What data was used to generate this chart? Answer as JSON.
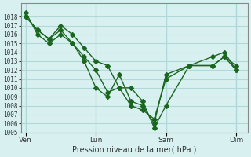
{
  "title": "",
  "xlabel": "Pression niveau de la mer( hPa )",
  "ylabel": "",
  "bg_color": "#d8f0f0",
  "grid_color": "#b0d8d8",
  "line_color": "#1a6620",
  "ylim": [
    1005,
    1019
  ],
  "yticks": [
    1005,
    1006,
    1007,
    1008,
    1009,
    1010,
    1011,
    1012,
    1013,
    1014,
    1015,
    1016,
    1017,
    1018
  ],
  "xtick_labels": [
    "Ven",
    "Lun",
    "Sam",
    "Dim"
  ],
  "xtick_positions": [
    0,
    3,
    6,
    9
  ],
  "series": [
    [
      1018,
      1016.5,
      1015.5,
      1016.5,
      1015,
      1013,
      1010,
      1009,
      1011.5,
      1008.5,
      1008,
      1006,
      1011.5,
      1012.5,
      1012.5,
      1013.5,
      1012
    ],
    [
      1018,
      1016.5,
      1015.5,
      1017,
      1016,
      1014.5,
      1013,
      1012.5,
      1010,
      1010,
      1008.5,
      1005.5,
      1008,
      1012.5,
      1012.5,
      1013.5,
      1012.5
    ],
    [
      1018.5,
      1016,
      1015,
      1016,
      1015,
      1013.5,
      1012,
      1009.5,
      1010,
      1008,
      1007.5,
      1006.5,
      1011,
      1012.5,
      1013.5,
      1014,
      1012
    ]
  ],
  "x_values": [
    0,
    0.5,
    1,
    1.5,
    2,
    2.5,
    3,
    3.5,
    4,
    4.5,
    5,
    5.5,
    6,
    7,
    8,
    8.5,
    9
  ]
}
